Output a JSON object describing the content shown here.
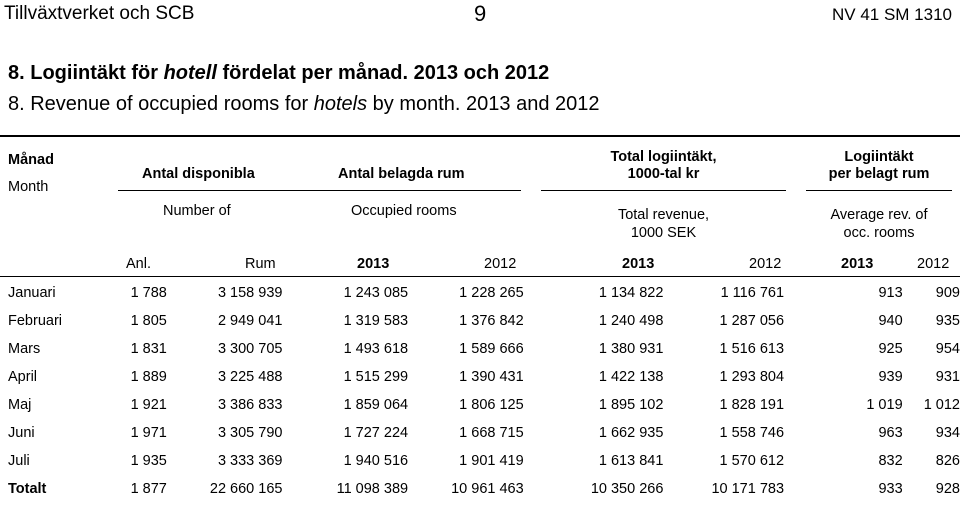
{
  "page_header": {
    "left": "Tillväxtverket och SCB",
    "center": "9",
    "right": "NV 41 SM 1310"
  },
  "title": {
    "sv_prefix": "8. Logiintäkt för ",
    "sv_italic": "hotell",
    "sv_suffix": " fördelat per månad. 2013 och 2012",
    "en_prefix": "8. Revenue of occupied rooms for ",
    "en_italic": "hotels",
    "en_suffix": " by month. 2013 and 2012"
  },
  "header": {
    "month_sv": "Månad",
    "month_en": "Month",
    "available_sv": "Antal disponibla",
    "available_en": "Number of",
    "occupied_sv": "Antal belagda rum",
    "occupied_en": "Occupied rooms",
    "revenue_sv_line1": "Total logiintäkt,",
    "revenue_sv_line2": "1000-tal kr",
    "revenue_en_line1": "Total revenue,",
    "revenue_en_line2": "1000 SEK",
    "avg_sv_line1": "Logiintäkt",
    "avg_sv_line2": "per belagt rum",
    "avg_en_line1": "Average rev. of",
    "avg_en_line2": "occ. rooms",
    "sub": [
      "Anl.",
      "Rum",
      "2013",
      "2012",
      "2013",
      "2012",
      "2013",
      "2012"
    ]
  },
  "rows": [
    {
      "month": "Januari",
      "anl": "1 788",
      "rum": "3 158 939",
      "occ2013": "1 243 085",
      "occ2012": "1 228 265",
      "rev2013": "1 134 822",
      "rev2012": "1 116 761",
      "avg2013": "913",
      "avg2012": "909"
    },
    {
      "month": "Februari",
      "anl": "1 805",
      "rum": "2 949 041",
      "occ2013": "1 319 583",
      "occ2012": "1 376 842",
      "rev2013": "1 240 498",
      "rev2012": "1 287 056",
      "avg2013": "940",
      "avg2012": "935"
    },
    {
      "month": "Mars",
      "anl": "1 831",
      "rum": "3 300 705",
      "occ2013": "1 493 618",
      "occ2012": "1 589 666",
      "rev2013": "1 380 931",
      "rev2012": "1 516 613",
      "avg2013": "925",
      "avg2012": "954"
    },
    {
      "month": "April",
      "anl": "1 889",
      "rum": "3 225 488",
      "occ2013": "1 515 299",
      "occ2012": "1 390 431",
      "rev2013": "1 422 138",
      "rev2012": "1 293 804",
      "avg2013": "939",
      "avg2012": "931"
    },
    {
      "month": "Maj",
      "anl": "1 921",
      "rum": "3 386 833",
      "occ2013": "1 859 064",
      "occ2012": "1 806 125",
      "rev2013": "1 895 102",
      "rev2012": "1 828 191",
      "avg2013": "1 019",
      "avg2012": "1 012"
    },
    {
      "month": "Juni",
      "anl": "1 971",
      "rum": "3 305 790",
      "occ2013": "1 727 224",
      "occ2012": "1 668 715",
      "rev2013": "1 662 935",
      "rev2012": "1 558 746",
      "avg2013": "963",
      "avg2012": "934"
    },
    {
      "month": "Juli",
      "anl": "1 935",
      "rum": "3 333 369",
      "occ2013": "1 940 516",
      "occ2012": "1 901 419",
      "rev2013": "1 613 841",
      "rev2012": "1 570 612",
      "avg2013": "832",
      "avg2012": "826"
    },
    {
      "month": "Totalt",
      "anl": "1 877",
      "rum": "22 660 165",
      "occ2013": "11 098 389",
      "occ2012": "10 961 463",
      "rev2013": "10 350 266",
      "rev2012": "10 171 783",
      "avg2013": "933",
      "avg2012": "928"
    }
  ]
}
